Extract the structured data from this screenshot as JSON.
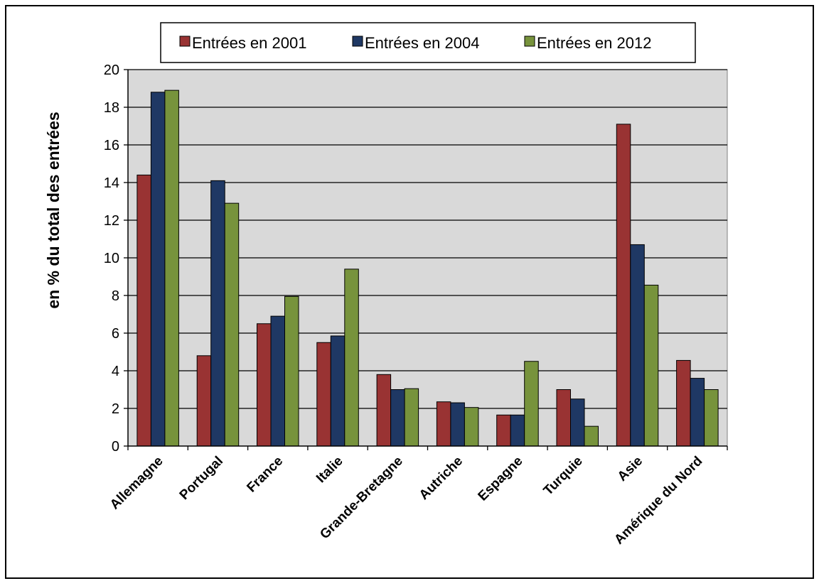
{
  "chart_data": {
    "type": "bar",
    "title": "",
    "xlabel": "",
    "ylabel": "en % du total des entrées",
    "ylim": [
      0,
      20
    ],
    "yticks": [
      0,
      2,
      4,
      6,
      8,
      10,
      12,
      14,
      16,
      18,
      20
    ],
    "grid": true,
    "legend_position": "top",
    "categories": [
      "Allemagne",
      "Portugal",
      "France",
      "Italie",
      "Grande-Bretagne",
      "Autriche",
      "Espagne",
      "Turquie",
      "Asie",
      "Amérique du Nord"
    ],
    "series": [
      {
        "name": "Entrées en 2001",
        "color": "#993333",
        "values": [
          14.4,
          4.8,
          6.5,
          5.5,
          3.8,
          2.35,
          1.65,
          3.0,
          17.1,
          4.55
        ]
      },
      {
        "name": "Entrées en 2004",
        "color": "#1f3864",
        "values": [
          18.8,
          14.1,
          6.9,
          5.85,
          3.0,
          2.3,
          1.65,
          2.5,
          10.7,
          3.6
        ]
      },
      {
        "name": "Entrées en 2012",
        "color": "#77933c",
        "values": [
          18.9,
          12.9,
          7.95,
          9.4,
          3.05,
          2.05,
          4.5,
          1.05,
          8.55,
          3.0
        ]
      }
    ]
  }
}
